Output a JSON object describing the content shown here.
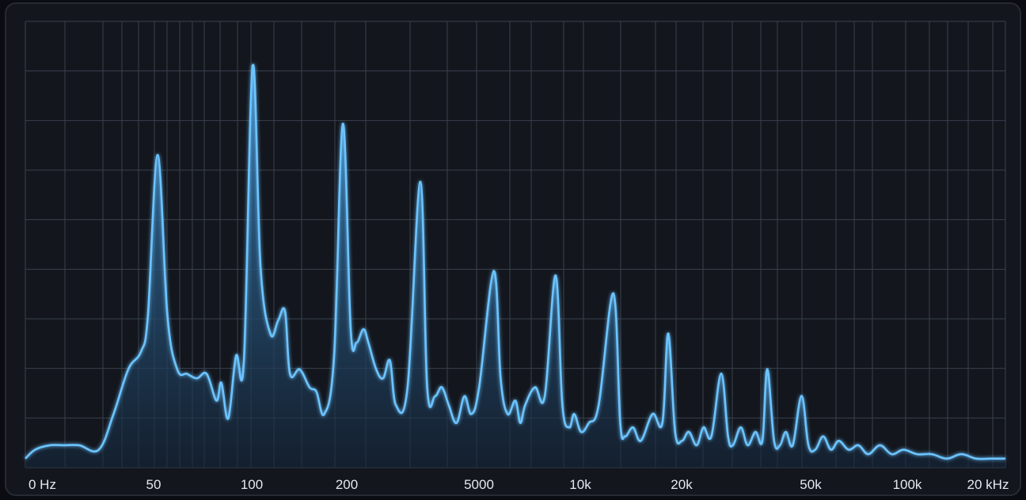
{
  "chart_data": {
    "type": "area",
    "x_tick_labels": [
      "0 Hz",
      "50",
      "100",
      "200",
      "5000",
      "10k",
      "20k",
      "50k",
      "100k",
      "20 kHz"
    ],
    "grid": true,
    "line_color": "#6cc4ff",
    "fill_color": "#2f6a99",
    "background_color": "#13161d",
    "grid_color": "#3a414c",
    "y_range": [
      0,
      1
    ],
    "peaks": [
      {
        "x": 0.135,
        "y": 0.7
      },
      {
        "x": 0.232,
        "y": 0.9
      },
      {
        "x": 0.324,
        "y": 0.77
      },
      {
        "x": 0.403,
        "y": 0.64
      },
      {
        "x": 0.478,
        "y": 0.44
      },
      {
        "x": 0.541,
        "y": 0.43
      },
      {
        "x": 0.6,
        "y": 0.39
      },
      {
        "x": 0.656,
        "y": 0.3
      },
      {
        "x": 0.71,
        "y": 0.21
      },
      {
        "x": 0.757,
        "y": 0.22
      },
      {
        "x": 0.792,
        "y": 0.16
      }
    ],
    "series": [
      {
        "values": [
          [
            0.0,
            0.02
          ],
          [
            0.01,
            0.04
          ],
          [
            0.025,
            0.05
          ],
          [
            0.04,
            0.05
          ],
          [
            0.055,
            0.05
          ],
          [
            0.075,
            0.04
          ],
          [
            0.09,
            0.12
          ],
          [
            0.105,
            0.22
          ],
          [
            0.118,
            0.26
          ],
          [
            0.125,
            0.34
          ],
          [
            0.135,
            0.7
          ],
          [
            0.145,
            0.34
          ],
          [
            0.155,
            0.22
          ],
          [
            0.165,
            0.21
          ],
          [
            0.175,
            0.2
          ],
          [
            0.185,
            0.21
          ],
          [
            0.195,
            0.15
          ],
          [
            0.2,
            0.19
          ],
          [
            0.207,
            0.11
          ],
          [
            0.215,
            0.25
          ],
          [
            0.223,
            0.24
          ],
          [
            0.232,
            0.9
          ],
          [
            0.24,
            0.45
          ],
          [
            0.25,
            0.3
          ],
          [
            0.258,
            0.33
          ],
          [
            0.265,
            0.35
          ],
          [
            0.27,
            0.21
          ],
          [
            0.28,
            0.22
          ],
          [
            0.29,
            0.18
          ],
          [
            0.297,
            0.17
          ],
          [
            0.305,
            0.12
          ],
          [
            0.315,
            0.25
          ],
          [
            0.324,
            0.77
          ],
          [
            0.332,
            0.31
          ],
          [
            0.338,
            0.28
          ],
          [
            0.345,
            0.31
          ],
          [
            0.35,
            0.28
          ],
          [
            0.358,
            0.22
          ],
          [
            0.365,
            0.2
          ],
          [
            0.372,
            0.24
          ],
          [
            0.378,
            0.14
          ],
          [
            0.39,
            0.18
          ],
          [
            0.403,
            0.64
          ],
          [
            0.41,
            0.18
          ],
          [
            0.418,
            0.16
          ],
          [
            0.425,
            0.18
          ],
          [
            0.432,
            0.14
          ],
          [
            0.44,
            0.1
          ],
          [
            0.448,
            0.16
          ],
          [
            0.455,
            0.12
          ],
          [
            0.463,
            0.18
          ],
          [
            0.478,
            0.44
          ],
          [
            0.485,
            0.2
          ],
          [
            0.492,
            0.12
          ],
          [
            0.5,
            0.15
          ],
          [
            0.505,
            0.1
          ],
          [
            0.51,
            0.14
          ],
          [
            0.52,
            0.18
          ],
          [
            0.53,
            0.16
          ],
          [
            0.541,
            0.43
          ],
          [
            0.548,
            0.14
          ],
          [
            0.555,
            0.09
          ],
          [
            0.56,
            0.12
          ],
          [
            0.567,
            0.08
          ],
          [
            0.575,
            0.1
          ],
          [
            0.585,
            0.14
          ],
          [
            0.6,
            0.39
          ],
          [
            0.607,
            0.1
          ],
          [
            0.612,
            0.07
          ],
          [
            0.62,
            0.09
          ],
          [
            0.628,
            0.06
          ],
          [
            0.64,
            0.12
          ],
          [
            0.65,
            0.1
          ],
          [
            0.656,
            0.3
          ],
          [
            0.663,
            0.08
          ],
          [
            0.67,
            0.06
          ],
          [
            0.677,
            0.08
          ],
          [
            0.685,
            0.05
          ],
          [
            0.692,
            0.09
          ],
          [
            0.7,
            0.07
          ],
          [
            0.71,
            0.21
          ],
          [
            0.717,
            0.07
          ],
          [
            0.722,
            0.05
          ],
          [
            0.73,
            0.09
          ],
          [
            0.737,
            0.05
          ],
          [
            0.745,
            0.08
          ],
          [
            0.752,
            0.06
          ],
          [
            0.757,
            0.22
          ],
          [
            0.764,
            0.06
          ],
          [
            0.77,
            0.05
          ],
          [
            0.776,
            0.08
          ],
          [
            0.783,
            0.05
          ],
          [
            0.792,
            0.16
          ],
          [
            0.799,
            0.05
          ],
          [
            0.806,
            0.04
          ],
          [
            0.814,
            0.07
          ],
          [
            0.822,
            0.04
          ],
          [
            0.83,
            0.06
          ],
          [
            0.84,
            0.04
          ],
          [
            0.85,
            0.05
          ],
          [
            0.86,
            0.03
          ],
          [
            0.872,
            0.05
          ],
          [
            0.884,
            0.03
          ],
          [
            0.896,
            0.04
          ],
          [
            0.91,
            0.03
          ],
          [
            0.925,
            0.03
          ],
          [
            0.94,
            0.02
          ],
          [
            0.955,
            0.03
          ],
          [
            0.97,
            0.02
          ],
          [
            0.985,
            0.02
          ],
          [
            1.0,
            0.02
          ]
        ]
      }
    ]
  }
}
